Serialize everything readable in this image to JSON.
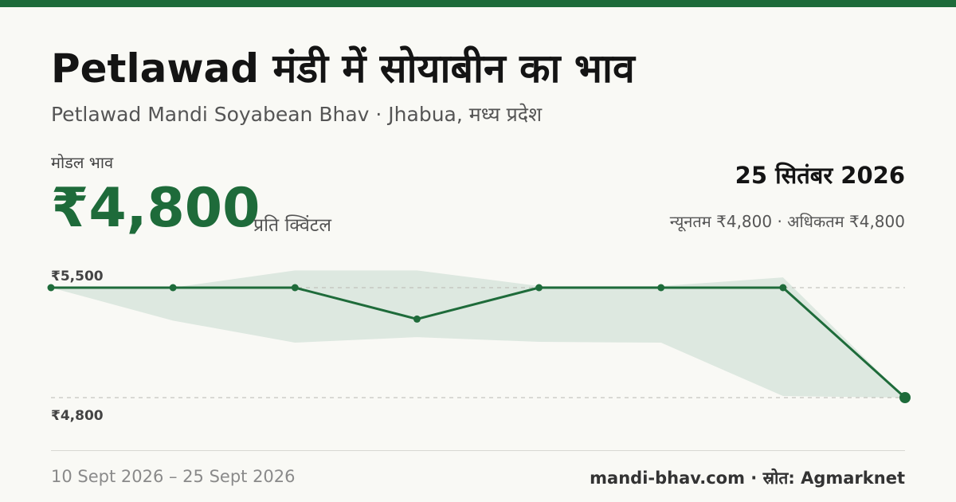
{
  "header": {
    "title": "Petlawad मंडी में सोयाबीन का भाव",
    "subtitle": "Petlawad Mandi Soyabean Bhav · Jhabua, मध्य प्रदेश"
  },
  "summary": {
    "modal_label": "मोडल भाव",
    "modal_price": "₹4,800",
    "unit": "प्रति क्विंटल",
    "date": "25 सितंबर 2026",
    "min_max": "न्यूनतम ₹4,800 · अधिकतम ₹4,800"
  },
  "colors": {
    "accent": "#1e6b3a",
    "band": "#dde8e0",
    "background": "#f9f9f5"
  },
  "chart_data": {
    "type": "line",
    "x": [
      "10 Sept 2026",
      "",
      "",
      "",
      "",
      "",
      "",
      "25 Sept 2026"
    ],
    "series": [
      {
        "role": "modal",
        "values": [
          5500,
          5500,
          5500,
          5300,
          5500,
          5500,
          5500,
          4800
        ]
      }
    ],
    "band": {
      "min": [
        5500,
        5290,
        5150,
        5185,
        5155,
        5150,
        4810,
        4800
      ],
      "max": [
        5500,
        5500,
        5610,
        5610,
        5510,
        5510,
        5565,
        4800
      ]
    },
    "y_ticks": [
      5500,
      4800
    ],
    "y_tick_labels": [
      "₹5,500",
      "₹4,800"
    ],
    "ylim": [
      4800,
      5500
    ],
    "grid": "dashed lines at ₹5,500 and ₹4,800"
  },
  "footer": {
    "date_range": "10 Sept 2026 – 25 Sept 2026",
    "source": "mandi-bhav.com · स्रोत: Agmarknet"
  }
}
